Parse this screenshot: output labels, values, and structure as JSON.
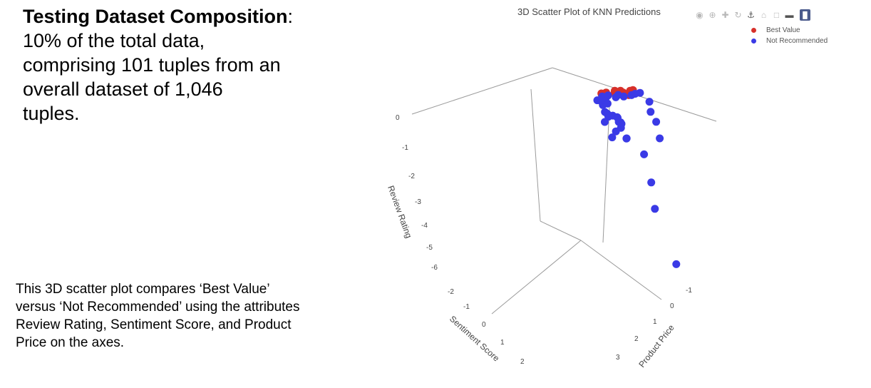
{
  "heading": {
    "bold": "Testing Dataset Composition",
    "colon": ":",
    "line1": "10% of the total data,",
    "line2": "comprising 101 tuples from an",
    "line3": "overall dataset of 1,046",
    "line4": "tuples."
  },
  "caption": {
    "line1": "This 3D scatter plot compares ‘Best Value’",
    "line2": "versus ‘Not Recommended’ using the attributes",
    "line3": "Review Rating, Sentiment Score, and Product",
    "line4": "Price on the axes."
  },
  "modebar": {
    "icons": [
      "camera-icon",
      "zoom-icon",
      "pan-icon",
      "orbit-rotation-icon",
      "turntable-rotation-icon",
      "home-icon",
      "reset-camera-icon",
      "hover-icon",
      "plotly-logo-icon"
    ]
  },
  "colors": {
    "best_value": "#d7302a",
    "not_recommended": "#3a3ae6",
    "axis_line": "#9a9a9a",
    "text": "#444444"
  },
  "chart_data": {
    "type": "scatter",
    "title": "3D Scatter Plot of KNN Predictions",
    "legend": {
      "position": "top-right",
      "entries": [
        "Best Value",
        "Not Recommended"
      ]
    },
    "axes": {
      "review_rating": {
        "label": "Review Rating",
        "ticks": [
          "0",
          "-1",
          "-2",
          "-3",
          "-4",
          "-5",
          "-6"
        ]
      },
      "sentiment_score": {
        "label": "Sentiment Score",
        "ticks": [
          "-2",
          "-1",
          "0",
          "1",
          "2"
        ]
      },
      "product_price": {
        "label": "Product Price",
        "ticks": [
          "-1",
          "0",
          "1",
          "2",
          "3"
        ]
      }
    },
    "series": [
      {
        "name": "Best Value",
        "color": "#d7302a",
        "points": [
          [
            0.3,
            0.2,
            1.2
          ],
          [
            0.35,
            0.25,
            1.5
          ],
          [
            0.4,
            0.15,
            1.8
          ],
          [
            0.45,
            0.3,
            2.0
          ],
          [
            0.5,
            0.22,
            2.2
          ],
          [
            0.38,
            0.18,
            2.5
          ],
          [
            0.52,
            0.35,
            2.8
          ],
          [
            0.55,
            0.4,
            3.0
          ],
          [
            0.28,
            0.1,
            1.1
          ],
          [
            0.42,
            0.32,
            2.4
          ]
        ]
      },
      {
        "name": "Not Recommended",
        "color": "#3a3ae6",
        "points": [
          [
            0.1,
            -0.5,
            0.5
          ],
          [
            0.15,
            -0.4,
            0.6
          ],
          [
            0.2,
            -0.2,
            0.8
          ],
          [
            0.12,
            -0.3,
            0.4
          ],
          [
            0.25,
            -0.1,
            0.9
          ],
          [
            0.18,
            -0.6,
            0.3
          ],
          [
            0.05,
            -0.7,
            0.2
          ],
          [
            0.22,
            -0.15,
            1.0
          ],
          [
            0.3,
            0.0,
            1.3
          ],
          [
            0.28,
            -0.05,
            1.6
          ],
          [
            0.35,
            0.1,
            1.9
          ],
          [
            0.33,
            0.05,
            2.1
          ],
          [
            0.4,
            0.15,
            2.6
          ],
          [
            0.45,
            0.25,
            2.9
          ],
          [
            0.5,
            0.3,
            3.2
          ],
          [
            0.2,
            -0.8,
            0.1
          ],
          [
            0.25,
            -0.9,
            0.0
          ],
          [
            -0.2,
            -1.5,
            -0.5
          ],
          [
            -0.1,
            -1.2,
            -0.3
          ],
          [
            -0.4,
            -1.3,
            0.2
          ],
          [
            -0.3,
            -0.9,
            0.5
          ],
          [
            -0.5,
            -0.8,
            0.6
          ],
          [
            -0.6,
            -0.6,
            0.9
          ],
          [
            -0.35,
            -0.5,
            0.7
          ],
          [
            -0.45,
            -0.3,
            1.1
          ],
          [
            -0.8,
            -0.4,
            1.0
          ],
          [
            -0.7,
            -0.2,
            0.5
          ],
          [
            -0.9,
            -0.7,
            0.4
          ],
          [
            -1.1,
            -0.8,
            0.7
          ],
          [
            -1.2,
            -0.3,
            1.2
          ],
          [
            -1.3,
            0.0,
            0.8
          ],
          [
            -1.6,
            -0.9,
            1.2
          ],
          [
            -2.5,
            -1.6,
            0.4
          ],
          [
            -3.8,
            -0.2,
            1.5
          ],
          [
            -6.0,
            0.6,
            2.4
          ],
          [
            0.1,
            0.8,
            4.0
          ],
          [
            -0.2,
            0.4,
            3.5
          ],
          [
            -0.6,
            0.6,
            3.8
          ],
          [
            -1.2,
            0.5,
            3.6
          ],
          [
            0.0,
            -1.9,
            -0.9
          ],
          [
            0.08,
            -0.45,
            0.7
          ],
          [
            0.16,
            -0.35,
            0.55
          ]
        ]
      }
    ]
  }
}
